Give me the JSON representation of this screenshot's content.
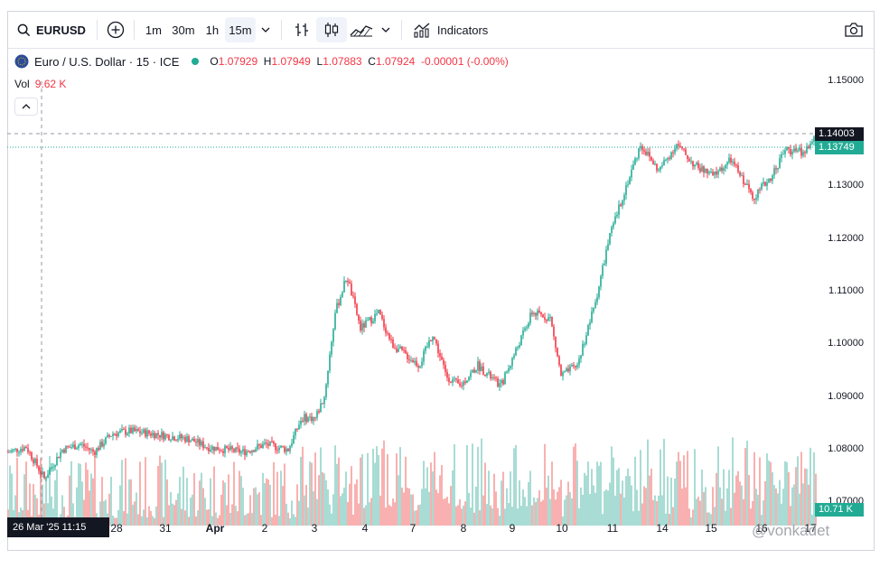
{
  "toolbar": {
    "symbol": "EURUSD",
    "timeframes": [
      "1m",
      "30m",
      "1h",
      "15m"
    ],
    "active_timeframe": "15m",
    "indicators_label": "Indicators"
  },
  "legend": {
    "title": "Euro / U.S. Dollar · 15 · ICE",
    "o_key": "O",
    "o": "1.07929",
    "h_key": "H",
    "h": "1.07949",
    "l_key": "L",
    "l": "1.07883",
    "c_key": "C",
    "c": "1.07924",
    "change": "-0.00001 (-0.00%)",
    "vol_key": "Vol",
    "vol_value": "9.62 K"
  },
  "price_axis": {
    "ticks": [
      "1.15000",
      "1.14000",
      "1.13000",
      "1.12000",
      "1.11000",
      "1.10000",
      "1.09000",
      "1.08000",
      "1.07000"
    ],
    "crosshair_price": "1.14003",
    "last_price": "1.13749",
    "volume_tag": "10.71 K"
  },
  "time_axis": {
    "crosshair_label": "26 Mar '25   11:15",
    "labels": [
      "28",
      "31",
      "Apr",
      "2",
      "3",
      "4",
      "7",
      "8",
      "9",
      "10",
      "11",
      "14",
      "15",
      "16",
      "17"
    ]
  },
  "watermark": "@vonkadet",
  "colors": {
    "up": "#22ab94",
    "down": "#f23645",
    "vol_up": "#9fd9cf",
    "vol_down": "#f7a9a7"
  },
  "chart_data": {
    "type": "candlestick",
    "symbol": "EURUSD",
    "interval": "15m",
    "ylim": [
      1.065,
      1.152
    ],
    "anchors": [
      [
        0,
        1.0795
      ],
      [
        20,
        1.0805
      ],
      [
        40,
        1.0745
      ],
      [
        60,
        1.08
      ],
      [
        80,
        1.081
      ],
      [
        95,
        1.0795
      ],
      [
        115,
        1.083
      ],
      [
        135,
        1.0835
      ],
      [
        160,
        1.083
      ],
      [
        180,
        1.0825
      ],
      [
        200,
        1.082
      ],
      [
        220,
        1.0805
      ],
      [
        240,
        1.08
      ],
      [
        260,
        1.0795
      ],
      [
        285,
        1.081
      ],
      [
        310,
        1.08
      ],
      [
        325,
        1.086
      ],
      [
        340,
        1.086
      ],
      [
        350,
        1.09
      ],
      [
        362,
        1.106
      ],
      [
        375,
        1.113
      ],
      [
        390,
        1.103
      ],
      [
        410,
        1.106
      ],
      [
        425,
        1.1
      ],
      [
        440,
        1.098
      ],
      [
        455,
        1.096
      ],
      [
        470,
        1.102
      ],
      [
        485,
        1.094
      ],
      [
        500,
        1.092
      ],
      [
        520,
        1.096
      ],
      [
        545,
        1.092
      ],
      [
        560,
        1.098
      ],
      [
        580,
        1.106
      ],
      [
        600,
        1.105
      ],
      [
        612,
        1.094
      ],
      [
        630,
        1.096
      ],
      [
        650,
        1.108
      ],
      [
        665,
        1.12
      ],
      [
        680,
        1.128
      ],
      [
        700,
        1.138
      ],
      [
        720,
        1.133
      ],
      [
        740,
        1.138
      ],
      [
        760,
        1.134
      ],
      [
        780,
        1.132
      ],
      [
        800,
        1.135
      ],
      [
        825,
        1.128
      ],
      [
        845,
        1.132
      ],
      [
        860,
        1.137
      ],
      [
        880,
        1.1365
      ],
      [
        893,
        1.139
      ],
      [
        901,
        1.1374
      ]
    ]
  }
}
